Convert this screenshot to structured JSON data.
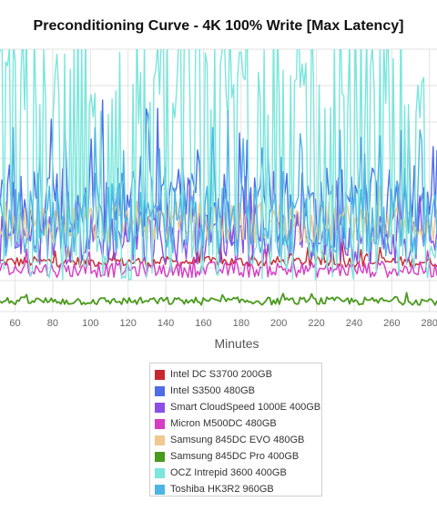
{
  "chart_data": {
    "type": "line",
    "title": "Preconditioning Curve - 4K 100% Write [Max Latency]",
    "xlabel": "Minutes",
    "ylabel": "",
    "x_ticks": [
      60,
      80,
      100,
      120,
      140,
      160,
      180,
      200,
      220,
      240,
      260,
      280
    ],
    "xlim": [
      52,
      284
    ],
    "y_visible_range": [
      0,
      100
    ],
    "grid": true,
    "legend_position": "bottom",
    "series": [
      {
        "name": "Intel DC S3700 200GB",
        "color": "#c8282d",
        "base": 19,
        "noise": 2,
        "spike_prob": 0.08,
        "spike": 6
      },
      {
        "name": "Intel S3500 480GB",
        "color": "#4f6de8",
        "base": 40,
        "noise": 16,
        "spike_prob": 0.12,
        "spike": 25
      },
      {
        "name": "Smart CloudSpeed 1000E 400GB",
        "color": "#8c4ee6",
        "base": 28,
        "noise": 10,
        "spike_prob": 0.1,
        "spike": 18
      },
      {
        "name": "Micron M500DC 480GB",
        "color": "#d63cc4",
        "base": 16,
        "noise": 3,
        "spike_prob": 0.05,
        "spike": 5
      },
      {
        "name": "Samsung 845DC EVO 480GB",
        "color": "#f1c98e",
        "base": 34,
        "noise": 8,
        "spike_prob": 0.05,
        "spike": 6
      },
      {
        "name": "Samsung 845DC Pro 400GB",
        "color": "#4a9a1e",
        "base": 4,
        "noise": 1.5,
        "spike_prob": 0.02,
        "spike": 2
      },
      {
        "name": "OCZ Intrepid 3600 400GB",
        "color": "#7ae6dc",
        "base": 20,
        "noise": 8,
        "spike_prob": 0.55,
        "spike": 85
      },
      {
        "name": "Toshiba HK3R2 960GB",
        "color": "#4db5e6",
        "base": 35,
        "noise": 14,
        "spike_prob": 0.12,
        "spike": 30
      }
    ]
  }
}
